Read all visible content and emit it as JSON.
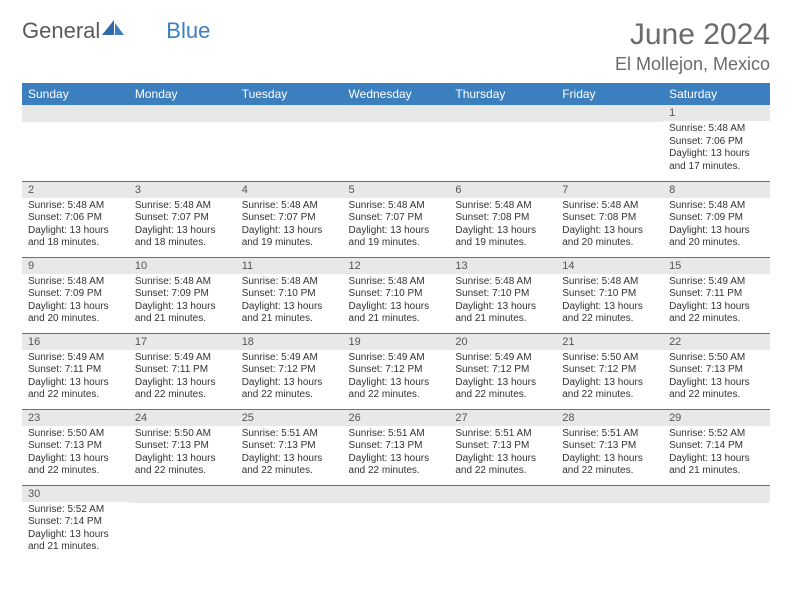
{
  "logo": {
    "general": "General",
    "blue": "Blue"
  },
  "title": "June 2024",
  "location": "El Mollejon, Mexico",
  "colors": {
    "header_bg": "#3b7fbf",
    "header_text": "#ffffff",
    "daynum_bg": "#e8e8e8",
    "row_divider": "#3b7fbf",
    "text": "#333333",
    "title_text": "#6b6b6b"
  },
  "weekdays": [
    "Sunday",
    "Monday",
    "Tuesday",
    "Wednesday",
    "Thursday",
    "Friday",
    "Saturday"
  ],
  "weeks": [
    [
      null,
      null,
      null,
      null,
      null,
      null,
      {
        "d": "1",
        "sr": "Sunrise: 5:48 AM",
        "ss": "Sunset: 7:06 PM",
        "dl1": "Daylight: 13 hours",
        "dl2": "and 17 minutes."
      }
    ],
    [
      {
        "d": "2",
        "sr": "Sunrise: 5:48 AM",
        "ss": "Sunset: 7:06 PM",
        "dl1": "Daylight: 13 hours",
        "dl2": "and 18 minutes."
      },
      {
        "d": "3",
        "sr": "Sunrise: 5:48 AM",
        "ss": "Sunset: 7:07 PM",
        "dl1": "Daylight: 13 hours",
        "dl2": "and 18 minutes."
      },
      {
        "d": "4",
        "sr": "Sunrise: 5:48 AM",
        "ss": "Sunset: 7:07 PM",
        "dl1": "Daylight: 13 hours",
        "dl2": "and 19 minutes."
      },
      {
        "d": "5",
        "sr": "Sunrise: 5:48 AM",
        "ss": "Sunset: 7:07 PM",
        "dl1": "Daylight: 13 hours",
        "dl2": "and 19 minutes."
      },
      {
        "d": "6",
        "sr": "Sunrise: 5:48 AM",
        "ss": "Sunset: 7:08 PM",
        "dl1": "Daylight: 13 hours",
        "dl2": "and 19 minutes."
      },
      {
        "d": "7",
        "sr": "Sunrise: 5:48 AM",
        "ss": "Sunset: 7:08 PM",
        "dl1": "Daylight: 13 hours",
        "dl2": "and 20 minutes."
      },
      {
        "d": "8",
        "sr": "Sunrise: 5:48 AM",
        "ss": "Sunset: 7:09 PM",
        "dl1": "Daylight: 13 hours",
        "dl2": "and 20 minutes."
      }
    ],
    [
      {
        "d": "9",
        "sr": "Sunrise: 5:48 AM",
        "ss": "Sunset: 7:09 PM",
        "dl1": "Daylight: 13 hours",
        "dl2": "and 20 minutes."
      },
      {
        "d": "10",
        "sr": "Sunrise: 5:48 AM",
        "ss": "Sunset: 7:09 PM",
        "dl1": "Daylight: 13 hours",
        "dl2": "and 21 minutes."
      },
      {
        "d": "11",
        "sr": "Sunrise: 5:48 AM",
        "ss": "Sunset: 7:10 PM",
        "dl1": "Daylight: 13 hours",
        "dl2": "and 21 minutes."
      },
      {
        "d": "12",
        "sr": "Sunrise: 5:48 AM",
        "ss": "Sunset: 7:10 PM",
        "dl1": "Daylight: 13 hours",
        "dl2": "and 21 minutes."
      },
      {
        "d": "13",
        "sr": "Sunrise: 5:48 AM",
        "ss": "Sunset: 7:10 PM",
        "dl1": "Daylight: 13 hours",
        "dl2": "and 21 minutes."
      },
      {
        "d": "14",
        "sr": "Sunrise: 5:48 AM",
        "ss": "Sunset: 7:10 PM",
        "dl1": "Daylight: 13 hours",
        "dl2": "and 22 minutes."
      },
      {
        "d": "15",
        "sr": "Sunrise: 5:49 AM",
        "ss": "Sunset: 7:11 PM",
        "dl1": "Daylight: 13 hours",
        "dl2": "and 22 minutes."
      }
    ],
    [
      {
        "d": "16",
        "sr": "Sunrise: 5:49 AM",
        "ss": "Sunset: 7:11 PM",
        "dl1": "Daylight: 13 hours",
        "dl2": "and 22 minutes."
      },
      {
        "d": "17",
        "sr": "Sunrise: 5:49 AM",
        "ss": "Sunset: 7:11 PM",
        "dl1": "Daylight: 13 hours",
        "dl2": "and 22 minutes."
      },
      {
        "d": "18",
        "sr": "Sunrise: 5:49 AM",
        "ss": "Sunset: 7:12 PM",
        "dl1": "Daylight: 13 hours",
        "dl2": "and 22 minutes."
      },
      {
        "d": "19",
        "sr": "Sunrise: 5:49 AM",
        "ss": "Sunset: 7:12 PM",
        "dl1": "Daylight: 13 hours",
        "dl2": "and 22 minutes."
      },
      {
        "d": "20",
        "sr": "Sunrise: 5:49 AM",
        "ss": "Sunset: 7:12 PM",
        "dl1": "Daylight: 13 hours",
        "dl2": "and 22 minutes."
      },
      {
        "d": "21",
        "sr": "Sunrise: 5:50 AM",
        "ss": "Sunset: 7:12 PM",
        "dl1": "Daylight: 13 hours",
        "dl2": "and 22 minutes."
      },
      {
        "d": "22",
        "sr": "Sunrise: 5:50 AM",
        "ss": "Sunset: 7:13 PM",
        "dl1": "Daylight: 13 hours",
        "dl2": "and 22 minutes."
      }
    ],
    [
      {
        "d": "23",
        "sr": "Sunrise: 5:50 AM",
        "ss": "Sunset: 7:13 PM",
        "dl1": "Daylight: 13 hours",
        "dl2": "and 22 minutes."
      },
      {
        "d": "24",
        "sr": "Sunrise: 5:50 AM",
        "ss": "Sunset: 7:13 PM",
        "dl1": "Daylight: 13 hours",
        "dl2": "and 22 minutes."
      },
      {
        "d": "25",
        "sr": "Sunrise: 5:51 AM",
        "ss": "Sunset: 7:13 PM",
        "dl1": "Daylight: 13 hours",
        "dl2": "and 22 minutes."
      },
      {
        "d": "26",
        "sr": "Sunrise: 5:51 AM",
        "ss": "Sunset: 7:13 PM",
        "dl1": "Daylight: 13 hours",
        "dl2": "and 22 minutes."
      },
      {
        "d": "27",
        "sr": "Sunrise: 5:51 AM",
        "ss": "Sunset: 7:13 PM",
        "dl1": "Daylight: 13 hours",
        "dl2": "and 22 minutes."
      },
      {
        "d": "28",
        "sr": "Sunrise: 5:51 AM",
        "ss": "Sunset: 7:13 PM",
        "dl1": "Daylight: 13 hours",
        "dl2": "and 22 minutes."
      },
      {
        "d": "29",
        "sr": "Sunrise: 5:52 AM",
        "ss": "Sunset: 7:14 PM",
        "dl1": "Daylight: 13 hours",
        "dl2": "and 21 minutes."
      }
    ],
    [
      {
        "d": "30",
        "sr": "Sunrise: 5:52 AM",
        "ss": "Sunset: 7:14 PM",
        "dl1": "Daylight: 13 hours",
        "dl2": "and 21 minutes."
      },
      null,
      null,
      null,
      null,
      null,
      null
    ]
  ]
}
